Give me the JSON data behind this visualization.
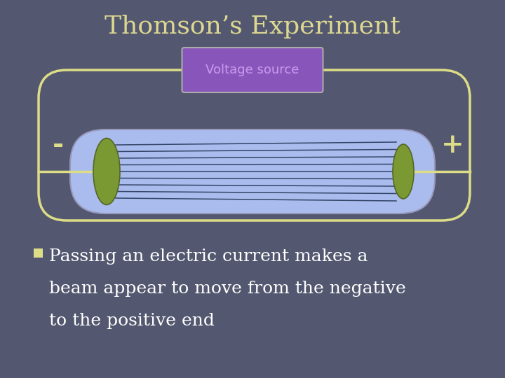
{
  "title": "Thomson’s Experiment",
  "title_color": "#ddd890",
  "title_fontsize": 26,
  "bg_color": "#535870",
  "voltage_label": "Voltage source",
  "voltage_box_color": "#8855bb",
  "voltage_text_color": "#cc99ee",
  "minus_label": "-",
  "plus_label": "+",
  "sign_color": "#dddd88",
  "tube_fill": "#aabcee",
  "tube_outline": "#dddd88",
  "tube_edge_color": "#9999bb",
  "electrode_color": "#7a9933",
  "electrode_edge": "#556622",
  "line_color": "#334466",
  "bullet_color": "#dddd88",
  "body_text_line1": "Passing an electric current makes a",
  "body_text_line2": "beam appear to move from the negative",
  "body_text_line3": "to the positive end",
  "body_text_color": "#ffffff",
  "body_fontsize": 18,
  "outer_wire_color": "#dddd88",
  "wire_linewidth": 2.5
}
